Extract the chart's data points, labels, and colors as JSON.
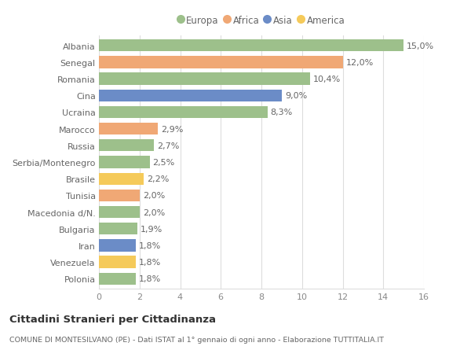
{
  "countries": [
    "Albania",
    "Senegal",
    "Romania",
    "Cina",
    "Ucraina",
    "Marocco",
    "Russia",
    "Serbia/Montenegro",
    "Brasile",
    "Tunisia",
    "Macedonia d/N.",
    "Bulgaria",
    "Iran",
    "Venezuela",
    "Polonia"
  ],
  "values": [
    15.0,
    12.0,
    10.4,
    9.0,
    8.3,
    2.9,
    2.7,
    2.5,
    2.2,
    2.0,
    2.0,
    1.9,
    1.8,
    1.8,
    1.8
  ],
  "labels": [
    "15,0%",
    "12,0%",
    "10,4%",
    "9,0%",
    "8,3%",
    "2,9%",
    "2,7%",
    "2,5%",
    "2,2%",
    "2,0%",
    "2,0%",
    "1,9%",
    "1,8%",
    "1,8%",
    "1,8%"
  ],
  "continents": [
    "Europa",
    "Africa",
    "Europa",
    "Asia",
    "Europa",
    "Africa",
    "Europa",
    "Europa",
    "America",
    "Africa",
    "Europa",
    "Europa",
    "Asia",
    "America",
    "Europa"
  ],
  "continent_colors": {
    "Europa": "#9dc08b",
    "Africa": "#f0a875",
    "Asia": "#6b8cc7",
    "America": "#f5ca5a"
  },
  "legend_order": [
    "Europa",
    "Africa",
    "Asia",
    "America"
  ],
  "title": "Cittadini Stranieri per Cittadinanza",
  "subtitle": "COMUNE DI MONTESILVANO (PE) - Dati ISTAT al 1° gennaio di ogni anno - Elaborazione TUTTITALIA.IT",
  "xlim": [
    0,
    16
  ],
  "xticks": [
    0,
    2,
    4,
    6,
    8,
    10,
    12,
    14,
    16
  ],
  "bg_color": "#ffffff",
  "grid_color": "#dddddd",
  "bar_height": 0.72
}
